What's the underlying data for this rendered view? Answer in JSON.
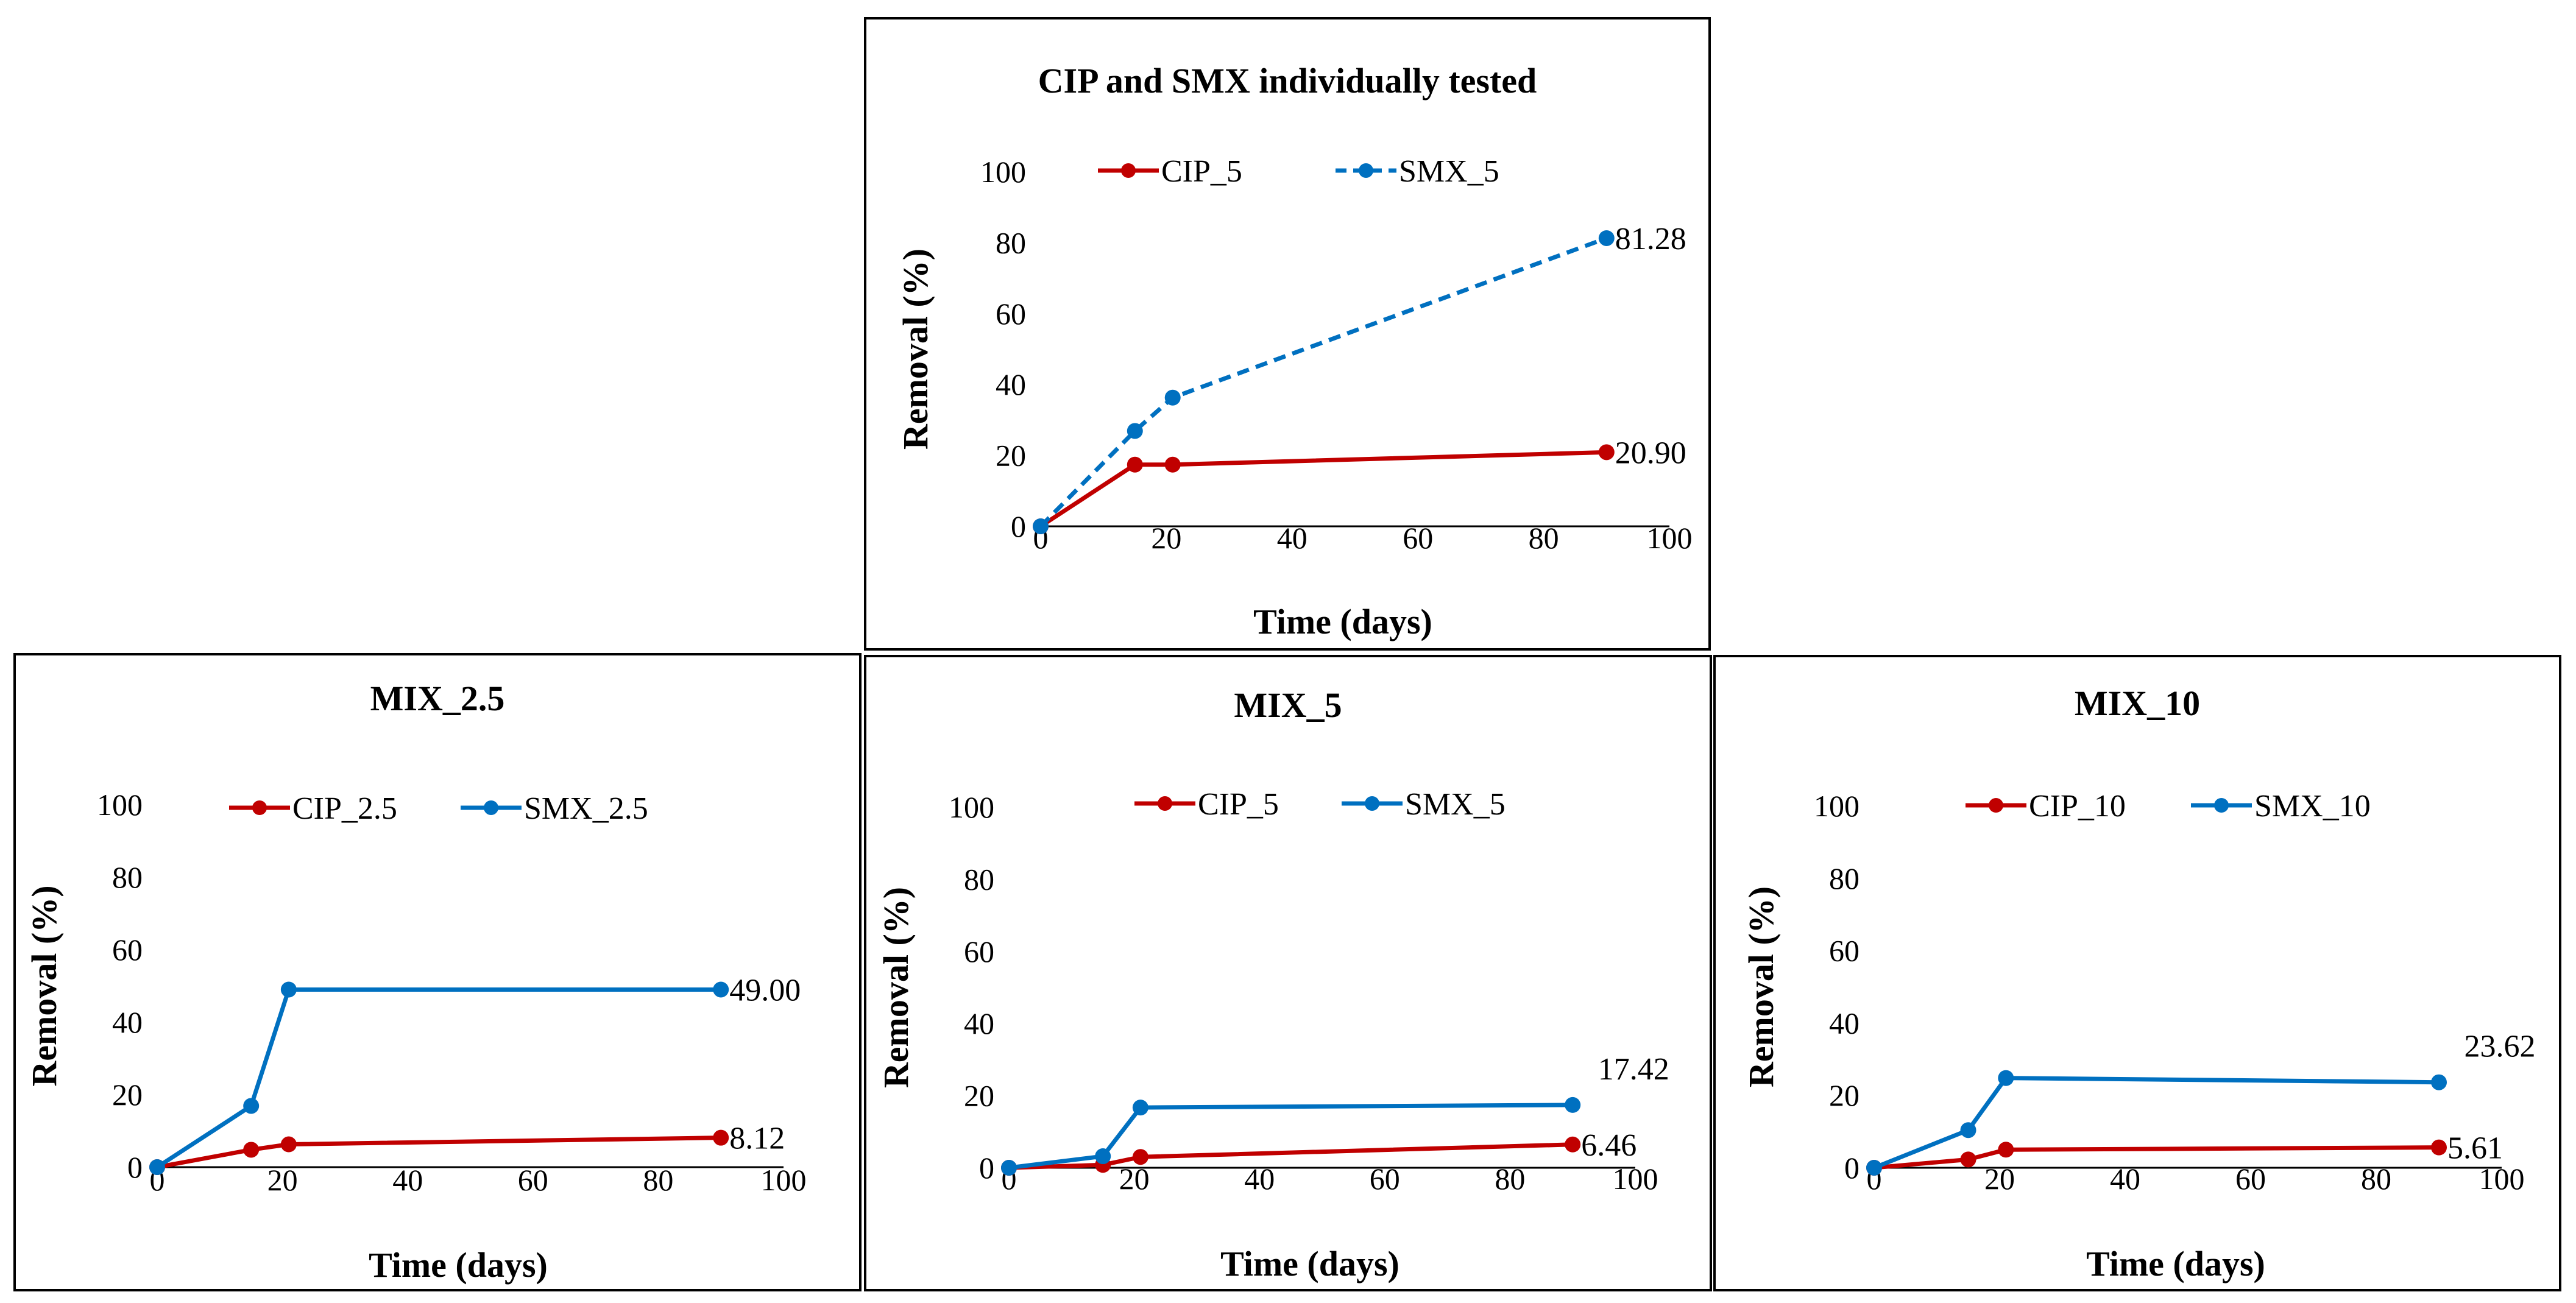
{
  "chart_data": [
    {
      "type": "line",
      "title": "CIP and SMX individually tested",
      "xlabel": "Time (days)",
      "ylabel": "Removal (%)",
      "xlim": [
        0,
        100
      ],
      "ylim": [
        0,
        100
      ],
      "xticks": [
        "0",
        "20",
        "40",
        "60",
        "80",
        "100"
      ],
      "yticks": [
        "0",
        "20",
        "40",
        "60",
        "80",
        "100"
      ],
      "grid": false,
      "legend": "top",
      "series": [
        {
          "name": "CIP_5",
          "color": "#C00000",
          "dash": false,
          "x": [
            0,
            15,
            21,
            90
          ],
          "values": [
            0,
            17.4,
            17.4,
            20.9
          ],
          "end_label": "20.90"
        },
        {
          "name": "SMX_5",
          "color": "#0070C0",
          "dash": true,
          "x": [
            0,
            15,
            21,
            90
          ],
          "values": [
            0,
            26.9,
            36.3,
            81.28
          ],
          "end_label": "81.28"
        }
      ]
    },
    {
      "type": "line",
      "title": "MIX_2.5",
      "xlabel": "Time (days)",
      "ylabel": "Removal (%)",
      "xlim": [
        0,
        100
      ],
      "ylim": [
        0,
        100
      ],
      "xticks": [
        "0",
        "20",
        "40",
        "60",
        "80",
        "100"
      ],
      "yticks": [
        "0",
        "20",
        "40",
        "60",
        "80",
        "100"
      ],
      "grid": false,
      "legend": "top",
      "series": [
        {
          "name": "CIP_2.5",
          "color": "#C00000",
          "dash": false,
          "x": [
            0,
            15,
            21,
            90
          ],
          "values": [
            0,
            4.8,
            6.3,
            8.12
          ],
          "end_label": "8.12"
        },
        {
          "name": "SMX_2.5",
          "color": "#0070C0",
          "dash": false,
          "x": [
            0,
            15,
            21,
            90
          ],
          "values": [
            0,
            16.9,
            49.0,
            49.0
          ],
          "end_label": "49.00"
        }
      ]
    },
    {
      "type": "line",
      "title": "MIX_5",
      "xlabel": "Time (days)",
      "ylabel": "Removal (%)",
      "xlim": [
        0,
        100
      ],
      "ylim": [
        0,
        100
      ],
      "xticks": [
        "0",
        "20",
        "40",
        "60",
        "80",
        "100"
      ],
      "yticks": [
        "0",
        "20",
        "40",
        "60",
        "80",
        "100"
      ],
      "grid": false,
      "legend": "top",
      "series": [
        {
          "name": "CIP_5",
          "color": "#C00000",
          "dash": false,
          "x": [
            0,
            15,
            21,
            90
          ],
          "values": [
            0,
            0.8,
            3.0,
            6.46
          ],
          "end_label": "6.46"
        },
        {
          "name": "SMX_5",
          "color": "#0070C0",
          "dash": false,
          "x": [
            0,
            15,
            21,
            90
          ],
          "values": [
            0,
            3.2,
            16.7,
            17.42
          ],
          "end_label": "17.42"
        }
      ]
    },
    {
      "type": "line",
      "title": "MIX_10",
      "xlabel": "Time (days)",
      "ylabel": "Removal (%)",
      "xlim": [
        0,
        100
      ],
      "ylim": [
        0,
        100
      ],
      "xticks": [
        "0",
        "20",
        "40",
        "60",
        "80",
        "100"
      ],
      "yticks": [
        "0",
        "20",
        "40",
        "60",
        "80",
        "100"
      ],
      "grid": false,
      "legend": "top",
      "series": [
        {
          "name": "CIP_10",
          "color": "#C00000",
          "dash": false,
          "x": [
            0,
            15,
            21,
            90
          ],
          "values": [
            0,
            2.3,
            5.0,
            5.61
          ],
          "end_label": "5.61"
        },
        {
          "name": "SMX_10",
          "color": "#0070C0",
          "dash": false,
          "x": [
            0,
            15,
            21,
            90
          ],
          "values": [
            0,
            10.4,
            24.8,
            23.62
          ],
          "end_label": "23.62"
        }
      ]
    }
  ]
}
